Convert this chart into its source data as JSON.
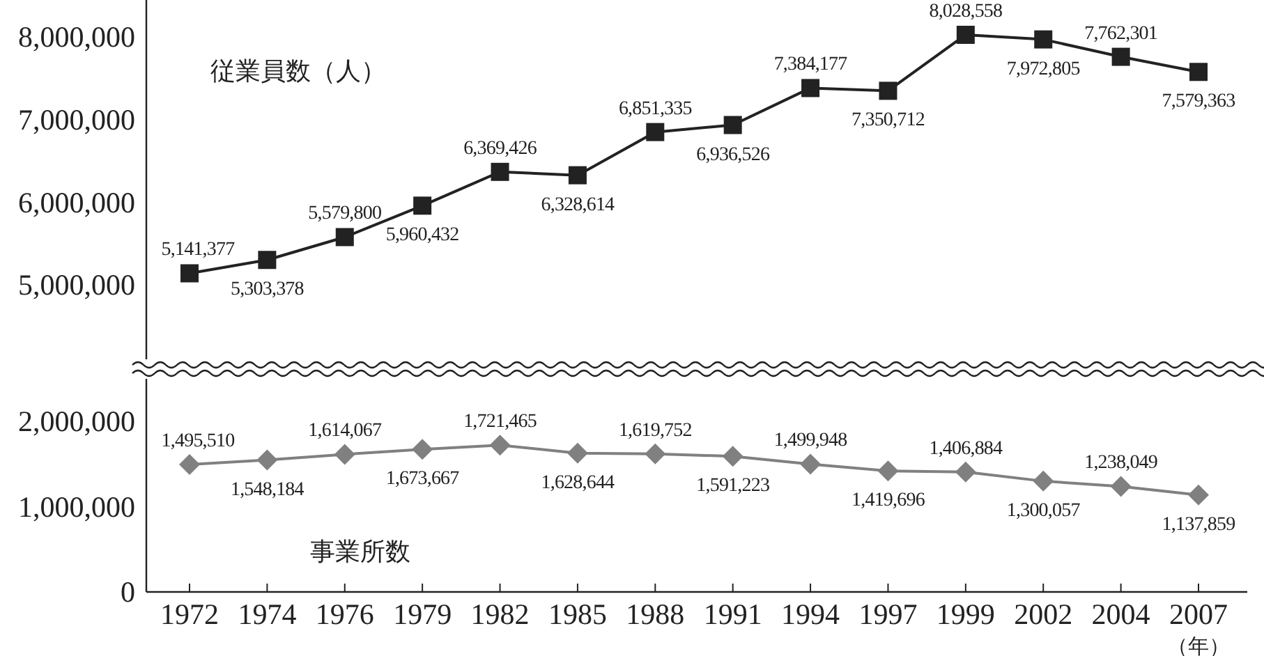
{
  "chart_data": [
    {
      "type": "line",
      "categories": [
        "1972",
        "1974",
        "1976",
        "1979",
        "1982",
        "1985",
        "1988",
        "1991",
        "1994",
        "1997",
        "1999",
        "2002",
        "2004",
        "2007"
      ],
      "tick_labels": "y",
      "marker": "square",
      "line_style": "solid",
      "ylim": [
        4100000,
        8450000
      ],
      "yticks": [
        {
          "value": 5000000,
          "label": "5,000,000"
        },
        {
          "value": 6000000,
          "label": "6,000,000"
        },
        {
          "value": 7000000,
          "label": "7,000,000"
        },
        {
          "value": 8000000,
          "label": "8,000,000"
        }
      ],
      "series": [
        {
          "name": "従業員数（人）",
          "color": "#222222",
          "values": [
            5141377,
            5303378,
            5579800,
            5960432,
            6369426,
            6328614,
            6851335,
            6936526,
            7384177,
            7350712,
            8028558,
            7972805,
            7762301,
            7579363
          ],
          "value_labels": [
            "5,141,377",
            "5,303,378",
            "5,579,800",
            "5,960,432",
            "6,369,426",
            "6,328,614",
            "6,851,335",
            "6,936,526",
            "7,384,177",
            "7,350,712",
            "8,028,558",
            "7,972,805",
            "7,762,301",
            "7,579,363"
          ]
        }
      ]
    },
    {
      "type": "line",
      "categories": [
        "1972",
        "1974",
        "1976",
        "1979",
        "1982",
        "1985",
        "1988",
        "1991",
        "1994",
        "1997",
        "1999",
        "2002",
        "2004",
        "2007"
      ],
      "xlabel": "（年）",
      "marker": "diamond",
      "line_style": "solid",
      "ylim": [
        0,
        2500000
      ],
      "yticks": [
        0,
        {
          "value": 1000000,
          "label": "1,000,000"
        },
        {
          "value": 2000000,
          "label": "2,000,000"
        }
      ],
      "series": [
        {
          "name": "事業所数",
          "color": "#808080",
          "values": [
            1495510,
            1548184,
            1614067,
            1673667,
            1721465,
            1628644,
            1619752,
            1591223,
            1499948,
            1419696,
            1406884,
            1300057,
            1238049,
            1137859
          ],
          "value_labels": [
            "1,495,510",
            "1,548,184",
            "1,614,067",
            "1,673,667",
            "1,721,465",
            "1,628,644",
            "1,619,752",
            "1,591,223",
            "1,499,948",
            "1,419,696",
            "1,406,884",
            "1,300,057",
            "1,238,049",
            "1,137,859"
          ]
        }
      ]
    }
  ]
}
